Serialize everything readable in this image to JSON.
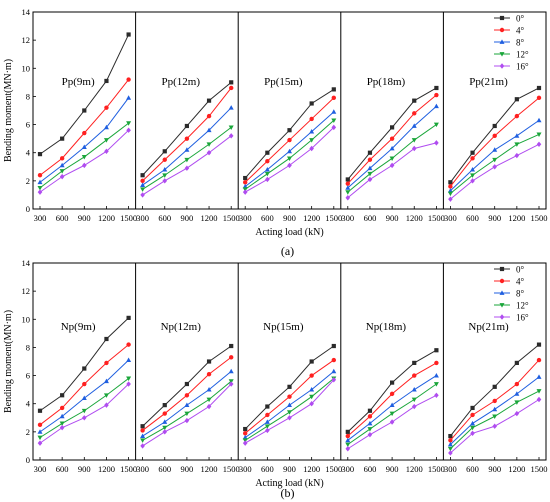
{
  "figure": {
    "legend_labels": [
      "0°",
      "4°",
      "8°",
      "12°",
      "16°"
    ],
    "series_colors": [
      "#2b2b2b",
      "#ff2020",
      "#1f5fe0",
      "#1aa63a",
      "#b04cf0"
    ]
  },
  "chart_data": [
    {
      "type": "line",
      "label": "(a)",
      "xlabel": "Acting load (kN)",
      "ylabel": "Bending moment(MN·m)",
      "x": [
        300,
        600,
        900,
        1200,
        1500
      ],
      "ylim": [
        0,
        14
      ],
      "yticks": [
        0,
        2,
        4,
        6,
        8,
        10,
        12,
        14
      ],
      "legend": "top-right of last panel",
      "panels": [
        {
          "title": "Pp(9m)",
          "series": [
            {
              "name": "0°",
              "values": [
                3.9,
                5.0,
                7.0,
                9.1,
                12.4
              ]
            },
            {
              "name": "4°",
              "values": [
                2.4,
                3.6,
                5.4,
                7.2,
                9.2
              ]
            },
            {
              "name": "8°",
              "values": [
                1.9,
                3.1,
                4.4,
                5.8,
                7.9
              ]
            },
            {
              "name": "12°",
              "values": [
                1.5,
                2.7,
                3.7,
                4.9,
                6.1
              ]
            },
            {
              "name": "16°",
              "values": [
                1.2,
                2.3,
                3.1,
                4.1,
                5.6
              ]
            }
          ]
        },
        {
          "title": "Pp(12m)",
          "series": [
            {
              "name": "0°",
              "values": [
                2.4,
                4.1,
                5.9,
                7.7,
                9.0
              ]
            },
            {
              "name": "4°",
              "values": [
                2.0,
                3.5,
                5.0,
                6.6,
                8.6
              ]
            },
            {
              "name": "8°",
              "values": [
                1.7,
                2.8,
                4.2,
                5.6,
                7.2
              ]
            },
            {
              "name": "12°",
              "values": [
                1.4,
                2.4,
                3.5,
                4.6,
                5.8
              ]
            },
            {
              "name": "16°",
              "values": [
                1.0,
                2.0,
                2.9,
                4.0,
                5.2
              ]
            }
          ]
        },
        {
          "title": "Pp(15m)",
          "series": [
            {
              "name": "0°",
              "values": [
                2.2,
                4.0,
                5.6,
                7.5,
                8.5
              ]
            },
            {
              "name": "4°",
              "values": [
                1.9,
                3.4,
                4.9,
                6.4,
                7.9
              ]
            },
            {
              "name": "8°",
              "values": [
                1.6,
                2.8,
                4.1,
                5.5,
                6.9
              ]
            },
            {
              "name": "12°",
              "values": [
                1.4,
                2.5,
                3.6,
                4.9,
                6.3
              ]
            },
            {
              "name": "16°",
              "values": [
                1.2,
                2.1,
                3.1,
                4.3,
                5.8
              ]
            }
          ]
        },
        {
          "title": "Pp(18m)",
          "series": [
            {
              "name": "0°",
              "values": [
                2.1,
                4.0,
                5.8,
                7.7,
                8.6
              ]
            },
            {
              "name": "4°",
              "values": [
                1.8,
                3.5,
                5.0,
                6.8,
                8.1
              ]
            },
            {
              "name": "8°",
              "values": [
                1.5,
                2.9,
                4.3,
                5.9,
                7.3
              ]
            },
            {
              "name": "12°",
              "values": [
                1.2,
                2.5,
                3.6,
                4.9,
                6.0
              ]
            },
            {
              "name": "16°",
              "values": [
                0.8,
                2.1,
                3.1,
                4.3,
                4.7
              ]
            }
          ]
        },
        {
          "title": "Pp(21m)",
          "series": [
            {
              "name": "0°",
              "values": [
                1.9,
                4.0,
                5.9,
                7.8,
                8.6
              ]
            },
            {
              "name": "4°",
              "values": [
                1.6,
                3.6,
                5.2,
                6.6,
                7.9
              ]
            },
            {
              "name": "8°",
              "values": [
                1.3,
                2.8,
                4.2,
                5.2,
                6.3
              ]
            },
            {
              "name": "12°",
              "values": [
                1.1,
                2.4,
                3.5,
                4.6,
                5.3
              ]
            },
            {
              "name": "16°",
              "values": [
                0.7,
                2.0,
                3.0,
                3.8,
                4.6
              ]
            }
          ]
        }
      ]
    },
    {
      "type": "line",
      "label": "(b)",
      "xlabel": "Acting load (kN)",
      "ylabel": "Bending moment(MN·m)",
      "x": [
        300,
        600,
        900,
        1200,
        1500
      ],
      "ylim": [
        0,
        14
      ],
      "yticks": [
        0,
        2,
        4,
        6,
        8,
        10,
        12,
        14
      ],
      "legend": "top-right of last panel",
      "panels": [
        {
          "title": "Np(9m)",
          "series": [
            {
              "name": "0°",
              "values": [
                3.5,
                4.6,
                6.5,
                8.6,
                10.1
              ]
            },
            {
              "name": "4°",
              "values": [
                2.5,
                3.7,
                5.4,
                6.9,
                8.2
              ]
            },
            {
              "name": "8°",
              "values": [
                2.0,
                3.1,
                4.4,
                5.6,
                7.1
              ]
            },
            {
              "name": "12°",
              "values": [
                1.6,
                2.6,
                3.5,
                4.6,
                5.8
              ]
            },
            {
              "name": "16°",
              "values": [
                1.2,
                2.3,
                3.0,
                3.9,
                5.4
              ]
            }
          ]
        },
        {
          "title": "Np(12m)",
          "series": [
            {
              "name": "0°",
              "values": [
                2.4,
                3.9,
                5.4,
                7.0,
                8.1
              ]
            },
            {
              "name": "4°",
              "values": [
                2.1,
                3.3,
                4.6,
                6.1,
                7.3
              ]
            },
            {
              "name": "8°",
              "values": [
                1.7,
                2.7,
                3.9,
                5.0,
                6.3
              ]
            },
            {
              "name": "12°",
              "values": [
                1.4,
                2.3,
                3.3,
                4.3,
                5.6
              ]
            },
            {
              "name": "16°",
              "values": [
                1.0,
                2.0,
                2.8,
                3.8,
                5.4
              ]
            }
          ]
        },
        {
          "title": "Np(15m)",
          "series": [
            {
              "name": "0°",
              "values": [
                2.2,
                3.8,
                5.2,
                7.0,
                8.1
              ]
            },
            {
              "name": "4°",
              "values": [
                1.9,
                3.2,
                4.5,
                6.0,
                7.1
              ]
            },
            {
              "name": "8°",
              "values": [
                1.6,
                2.7,
                3.9,
                5.0,
                6.3
              ]
            },
            {
              "name": "12°",
              "values": [
                1.4,
                2.4,
                3.4,
                4.5,
                5.8
              ]
            },
            {
              "name": "16°",
              "values": [
                1.2,
                2.1,
                3.0,
                4.0,
                5.7
              ]
            }
          ]
        },
        {
          "title": "Np(18m)",
          "series": [
            {
              "name": "0°",
              "values": [
                2.0,
                3.5,
                5.5,
                6.9,
                7.8
              ]
            },
            {
              "name": "4°",
              "values": [
                1.7,
                3.1,
                4.7,
                6.0,
                6.9
              ]
            },
            {
              "name": "8°",
              "values": [
                1.4,
                2.6,
                3.9,
                5.0,
                6.0
              ]
            },
            {
              "name": "12°",
              "values": [
                1.1,
                2.2,
                3.3,
                4.3,
                5.4
              ]
            },
            {
              "name": "16°",
              "values": [
                0.8,
                1.8,
                2.7,
                3.8,
                4.6
              ]
            }
          ]
        },
        {
          "title": "Np(21m)",
          "series": [
            {
              "name": "0°",
              "values": [
                1.7,
                3.7,
                5.2,
                6.9,
                8.2
              ]
            },
            {
              "name": "4°",
              "values": [
                1.4,
                3.2,
                4.2,
                5.4,
                7.1
              ]
            },
            {
              "name": "8°",
              "values": [
                1.1,
                2.6,
                3.6,
                4.7,
                5.9
              ]
            },
            {
              "name": "12°",
              "values": [
                0.8,
                2.3,
                3.1,
                4.1,
                4.9
              ]
            },
            {
              "name": "16°",
              "values": [
                0.5,
                1.9,
                2.4,
                3.3,
                4.3
              ]
            }
          ]
        }
      ]
    }
  ]
}
